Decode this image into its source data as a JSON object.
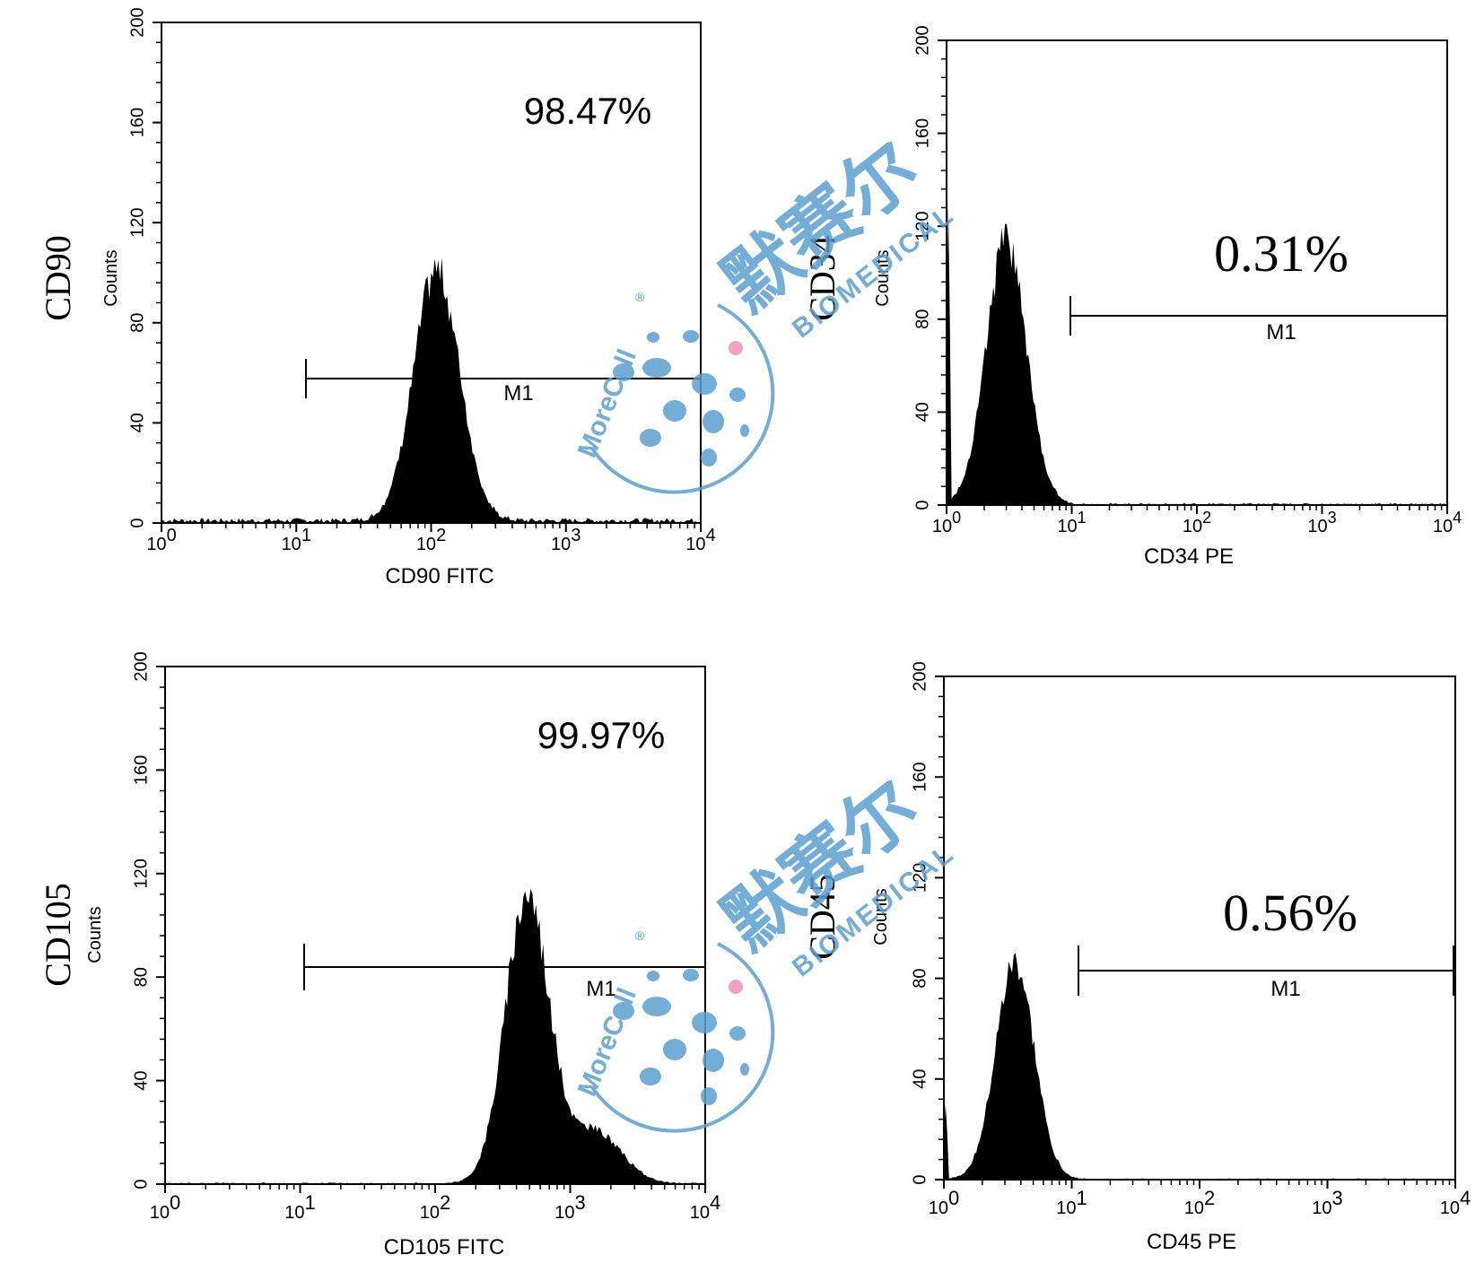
{
  "chart_data": [
    {
      "type": "histogram",
      "panel_label": "CD90",
      "xlabel": "CD90 FITC",
      "ylabel": "Counts",
      "x_scale": "log",
      "xlim": [
        1,
        10000
      ],
      "ylim": [
        0,
        200
      ],
      "xticks": [
        "10^0",
        "10^1",
        "10^2",
        "10^3",
        "10^4"
      ],
      "yticks": [
        "0",
        "40",
        "80",
        "120",
        "160",
        "200"
      ],
      "percent_positive": "98.47%",
      "gate": {
        "label": "M1",
        "from": 12,
        "to": 10000,
        "y": 58
      },
      "peak": {
        "x": 110,
        "counts": 100
      }
    },
    {
      "type": "histogram",
      "panel_label": "CD34",
      "xlabel": "CD34 PE",
      "ylabel": "Counts",
      "x_scale": "log",
      "xlim": [
        1,
        10000
      ],
      "ylim": [
        0,
        200
      ],
      "xticks": [
        "10^0",
        "10^1",
        "10^2",
        "10^3",
        "10^4"
      ],
      "yticks": [
        "0",
        "40",
        "80",
        "120",
        "160",
        "200"
      ],
      "percent_positive": "0.31%",
      "gate": {
        "label": "M1",
        "from": 10,
        "to": 10000,
        "y": 80
      },
      "peak": {
        "x": 3,
        "counts": 113
      }
    },
    {
      "type": "histogram",
      "panel_label": "CD105",
      "xlabel": "CD105 FITC",
      "ylabel": "Counts",
      "x_scale": "log",
      "xlim": [
        1,
        10000
      ],
      "ylim": [
        0,
        200
      ],
      "xticks": [
        "10^0",
        "10^1",
        "10^2",
        "10^3",
        "10^4"
      ],
      "yticks": [
        "0",
        "40",
        "80",
        "120",
        "160",
        "200"
      ],
      "percent_positive": "99.97%",
      "gate": {
        "label": "M1",
        "from": 11,
        "to": 10000,
        "y": 84
      },
      "peak": {
        "x": 480,
        "counts": 112
      }
    },
    {
      "type": "histogram",
      "panel_label": "CD45",
      "xlabel": "CD45 PE",
      "ylabel": "Counts",
      "x_scale": "log",
      "xlim": [
        1,
        10000
      ],
      "ylim": [
        0,
        200
      ],
      "xticks": [
        "10^0",
        "10^1",
        "10^2",
        "10^3",
        "10^4"
      ],
      "yticks": [
        "0",
        "40",
        "80",
        "120",
        "160",
        "200"
      ],
      "percent_positive": "0.56%",
      "gate": {
        "label": "M1",
        "from": 11,
        "to": 10000,
        "y": 82
      },
      "peak": {
        "x": 3.6,
        "counts": 86
      }
    }
  ],
  "watermark": {
    "logo_text": "MoreCell",
    "registered": "®",
    "company_cn": "默赛尔",
    "company_en": "BIOMEDICAL",
    "color": "#5b9fcf"
  }
}
